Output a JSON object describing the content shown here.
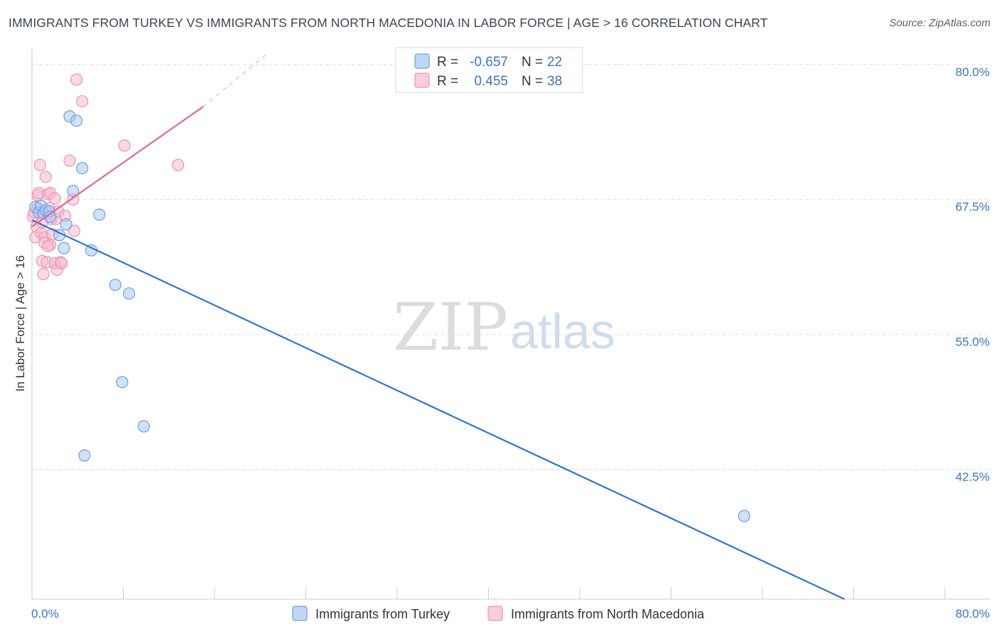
{
  "title": "IMMIGRANTS FROM TURKEY VS IMMIGRANTS FROM NORTH MACEDONIA IN LABOR FORCE | AGE > 16 CORRELATION CHART",
  "source": "Source: ZipAtlas.com",
  "watermark": {
    "zip": "ZIP",
    "atlas": "atlas"
  },
  "legend": {
    "series": [
      {
        "r_label": "R =",
        "r_value": "-0.657",
        "n_label": "N =",
        "n_value": "22"
      },
      {
        "r_label": "R =",
        "r_value": "0.455",
        "n_label": "N =",
        "n_value": "38"
      }
    ]
  },
  "colors": {
    "turkey_fill": "#aac8f2",
    "turkey_stroke": "#6f9fe0",
    "turkey_line": "#2f74d0",
    "macedonia_fill": "#f7bccd",
    "macedonia_stroke": "#ee93b0",
    "macedonia_line": "#e0688f",
    "tick_label": "#3b72c9",
    "grid": "#dddddd"
  },
  "chart_data": {
    "type": "scatter",
    "title": "IMMIGRANTS FROM TURKEY VS IMMIGRANTS FROM NORTH MACEDONIA IN LABOR FORCE | AGE > 16 CORRELATION CHART",
    "xlabel": "",
    "ylabel": "In Labor Force | Age > 16",
    "xlim": [
      0,
      80
    ],
    "ylim": [
      30.5,
      81.5
    ],
    "x_tick_labels": [
      "0.0%",
      "80.0%"
    ],
    "y_ticks": [
      42.5,
      55.0,
      67.5,
      80.0
    ],
    "y_tick_labels": [
      "42.5%",
      "55.0%",
      "67.5%",
      "80.0%"
    ],
    "grid": true,
    "legend_position": "top-center",
    "series": [
      {
        "name": "Immigrants from Turkey",
        "r": -0.657,
        "n": 22,
        "points": [
          [
            0.3,
            66.8
          ],
          [
            0.6,
            66.3
          ],
          [
            0.8,
            66.9
          ],
          [
            1.0,
            66.2
          ],
          [
            1.2,
            66.5
          ],
          [
            1.5,
            66.4
          ],
          [
            1.6,
            65.9
          ],
          [
            2.4,
            64.2
          ],
          [
            2.8,
            63.0
          ],
          [
            3.0,
            65.2
          ],
          [
            3.3,
            75.2
          ],
          [
            3.6,
            68.3
          ],
          [
            3.9,
            74.8
          ],
          [
            4.4,
            70.4
          ],
          [
            5.2,
            62.8
          ],
          [
            5.9,
            66.1
          ],
          [
            7.3,
            59.6
          ],
          [
            8.5,
            58.8
          ],
          [
            7.9,
            50.6
          ],
          [
            9.8,
            46.5
          ],
          [
            4.6,
            43.8
          ],
          [
            62.4,
            38.2
          ]
        ],
        "trend": {
          "x1": 0,
          "y1": 65.6,
          "x2": 71.2,
          "y2": 30.5
        }
      },
      {
        "name": "Immigrants from North Macedonia",
        "r": 0.455,
        "n": 38,
        "points": [
          [
            0.1,
            65.9
          ],
          [
            0.2,
            66.3
          ],
          [
            0.3,
            64.0
          ],
          [
            0.4,
            65.0
          ],
          [
            0.5,
            66.7
          ],
          [
            0.5,
            67.9
          ],
          [
            0.6,
            68.1
          ],
          [
            0.7,
            70.7
          ],
          [
            0.8,
            64.4
          ],
          [
            0.9,
            65.4
          ],
          [
            0.9,
            61.8
          ],
          [
            1.0,
            60.6
          ],
          [
            1.1,
            64.0
          ],
          [
            1.1,
            63.5
          ],
          [
            1.2,
            69.6
          ],
          [
            1.3,
            61.7
          ],
          [
            1.4,
            68.0
          ],
          [
            1.5,
            66.7
          ],
          [
            1.6,
            68.1
          ],
          [
            1.6,
            63.3
          ],
          [
            1.7,
            65.7
          ],
          [
            1.8,
            64.3
          ],
          [
            2.0,
            67.6
          ],
          [
            2.0,
            61.6
          ],
          [
            2.1,
            65.7
          ],
          [
            2.2,
            61.0
          ],
          [
            2.3,
            66.4
          ],
          [
            2.5,
            61.7
          ],
          [
            2.6,
            61.6
          ],
          [
            2.9,
            66.0
          ],
          [
            3.3,
            71.1
          ],
          [
            3.6,
            67.5
          ],
          [
            3.7,
            64.6
          ],
          [
            3.9,
            78.6
          ],
          [
            4.4,
            76.6
          ],
          [
            8.1,
            72.5
          ],
          [
            12.8,
            70.7
          ],
          [
            1.4,
            63.2
          ]
        ],
        "trend": {
          "x1": 0,
          "y1": 65.0,
          "x2": 15.0,
          "y2": 76.1
        },
        "trend_extension": {
          "x1": 15.0,
          "y1": 76.1,
          "x2": 20.5,
          "y2": 80.9
        }
      }
    ]
  }
}
